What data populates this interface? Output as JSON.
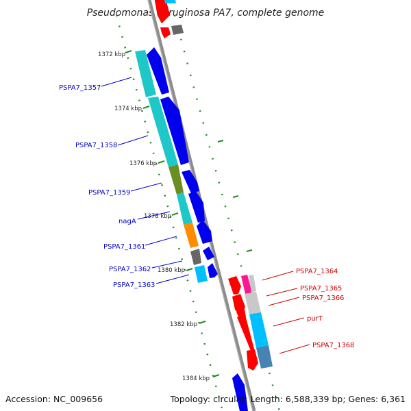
{
  "title": "Pseudomonas aeruginosa PA7, complete genome",
  "footer": {
    "accession": "Accession: NC_009656",
    "summary": "Topology: circular; Length: 6,588,339 bp; Genes: 6,361"
  },
  "ruler": {
    "ticks": [
      {
        "label": "1372 kbp"
      },
      {
        "label": "1374 kbp"
      },
      {
        "label": "1376 kbp"
      },
      {
        "label": "1378 kbp"
      },
      {
        "label": "1380 kbp"
      },
      {
        "label": "1382 kbp"
      },
      {
        "label": "1384 kbp"
      }
    ]
  },
  "labels": {
    "left": [
      {
        "text": "PSPA7_1357"
      },
      {
        "text": "PSPA7_1358"
      },
      {
        "text": "PSPA7_1359"
      },
      {
        "text": "nagA"
      },
      {
        "text": "PSPA7_1361"
      },
      {
        "text": "PSPA7_1362"
      },
      {
        "text": "PSPA7_1363"
      }
    ],
    "right": [
      {
        "text": "PSPA7_1364"
      },
      {
        "text": "PSPA7_1365"
      },
      {
        "text": "PSPA7_1366"
      },
      {
        "text": "purT"
      },
      {
        "text": "PSPA7_1368"
      }
    ]
  },
  "colors": {
    "backbone": "#8c8c8c",
    "forward_cds": "#0000ee",
    "reverse_cds": "#ff0000",
    "left_label": "#0000cc",
    "right_label": "#cc0000",
    "gc_ticks": "#1f8a1f",
    "cyan": "#1ec8c8",
    "olive": "#6b8e23",
    "orange": "#ff8c00",
    "dark_gray": "#666666",
    "light_gray": "#c8c8c8",
    "sky_blue": "#00bfff",
    "steel_blue": "#4682b4",
    "pink": "#ff1493"
  }
}
